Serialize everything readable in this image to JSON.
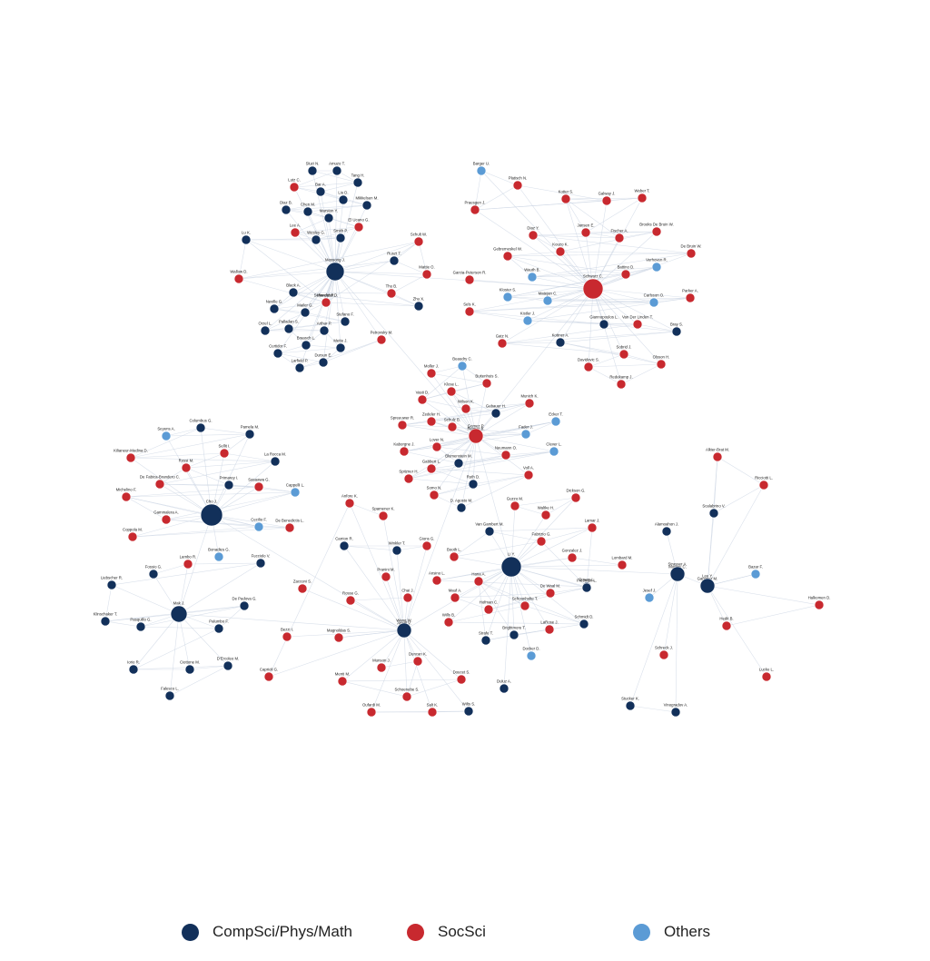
{
  "colors": {
    "compsci": "#12305a",
    "socsci": "#c8292f",
    "others": "#5b9bd5"
  },
  "legend": [
    {
      "key": "compsci",
      "label": "CompSci/Phys/Math"
    },
    {
      "key": "socsci",
      "label": "SocSci"
    },
    {
      "key": "others",
      "label": "Others"
    }
  ],
  "hubs": [
    {
      "name": "Mossong J.",
      "c": "compsci"
    },
    {
      "name": "Schwarz C.",
      "c": "socsci"
    },
    {
      "name": "Gomez P.",
      "c": "socsci"
    },
    {
      "name": "Cho J.",
      "c": "compsci"
    },
    {
      "name": "Li Y.",
      "c": "compsci"
    },
    {
      "name": "Mak J.",
      "c": "compsci"
    },
    {
      "name": "Wang W.",
      "c": "compsci"
    },
    {
      "name": "Strasser A.",
      "c": "compsci"
    },
    {
      "name": "Lee Y.",
      "c": "compsci"
    }
  ],
  "nodes": [
    {
      "name": "Sluzi N.",
      "c": "compsci"
    },
    {
      "name": "Amuzo T.",
      "c": "compsci"
    },
    {
      "name": "Tang H.",
      "c": "compsci"
    },
    {
      "name": "Lutz C.",
      "c": "socsci"
    },
    {
      "name": "Bar A.",
      "c": "compsci"
    },
    {
      "name": "Liu D.",
      "c": "compsci"
    },
    {
      "name": "Mikkelsen M.",
      "c": "compsci"
    },
    {
      "name": "Diaz B.",
      "c": "compsci"
    },
    {
      "name": "Chen M.",
      "c": "compsci"
    },
    {
      "name": "Marston Y.",
      "c": "compsci"
    },
    {
      "name": "El Ucano G.",
      "c": "socsci"
    },
    {
      "name": "Lee A.",
      "c": "socsci"
    },
    {
      "name": "Wesley G.",
      "c": "compsci"
    },
    {
      "name": "Smith P.",
      "c": "compsci"
    },
    {
      "name": "Lu K.",
      "c": "compsci"
    },
    {
      "name": "Mandel R.",
      "c": "socsci"
    },
    {
      "name": "Wallow D.",
      "c": "socsci"
    },
    {
      "name": "Schult W.",
      "c": "socsci"
    },
    {
      "name": "Ruszt T.",
      "c": "compsci"
    },
    {
      "name": "Mattie O.",
      "c": "socsci"
    },
    {
      "name": "Garcia-Peterson R.",
      "c": "socsci"
    },
    {
      "name": "Thu B.",
      "c": "socsci"
    },
    {
      "name": "Zhu X.",
      "c": "compsci"
    },
    {
      "name": "Black A.",
      "c": "compsci"
    },
    {
      "name": "Schweitzer D.",
      "c": "socsci"
    },
    {
      "name": "Neville G.",
      "c": "compsci"
    },
    {
      "name": "Mailer G.",
      "c": "compsci"
    },
    {
      "name": "Stefano F.",
      "c": "compsci"
    },
    {
      "name": "Orzel L.",
      "c": "compsci"
    },
    {
      "name": "Palladan S.",
      "c": "compsci"
    },
    {
      "name": "Arthur P.",
      "c": "compsci"
    },
    {
      "name": "Braasch L.",
      "c": "compsci"
    },
    {
      "name": "Mette J.",
      "c": "compsci"
    },
    {
      "name": "Curtidor F.",
      "c": "compsci"
    },
    {
      "name": "Dursun E.",
      "c": "compsci"
    },
    {
      "name": "Larfield P.",
      "c": "compsci"
    },
    {
      "name": "Petrovsky M.",
      "c": "socsci"
    },
    {
      "name": "Barger U.",
      "c": "others"
    },
    {
      "name": "Platisch N.",
      "c": "socsci"
    },
    {
      "name": "Praesgen J.",
      "c": "socsci"
    },
    {
      "name": "Galway J.",
      "c": "socsci"
    },
    {
      "name": "Weber T.",
      "c": "socsci"
    },
    {
      "name": "Kotter S.",
      "c": "socsci"
    },
    {
      "name": "Jansen E.",
      "c": "socsci"
    },
    {
      "name": "Fischer A.",
      "c": "socsci"
    },
    {
      "name": "Brooks De Bruin W.",
      "c": "socsci"
    },
    {
      "name": "Diaz Y.",
      "c": "socsci"
    },
    {
      "name": "Kouzo K.",
      "c": "socsci"
    },
    {
      "name": "De Bruin W.",
      "c": "socsci"
    },
    {
      "name": "Gebremeskel W.",
      "c": "socsci"
    },
    {
      "name": "Wauth B.",
      "c": "others"
    },
    {
      "name": "Battino D.",
      "c": "socsci"
    },
    {
      "name": "Verhoven R.",
      "c": "others"
    },
    {
      "name": "Kloster S.",
      "c": "others"
    },
    {
      "name": "Matejan C.",
      "c": "others"
    },
    {
      "name": "Carlsson O.",
      "c": "others"
    },
    {
      "name": "Parker A.",
      "c": "socsci"
    },
    {
      "name": "Sels K.",
      "c": "socsci"
    },
    {
      "name": "Kistler J.",
      "c": "others"
    },
    {
      "name": "Giannopoulos L.",
      "c": "compsci"
    },
    {
      "name": "Van Der Linden T.",
      "c": "socsci"
    },
    {
      "name": "Bray S.",
      "c": "compsci"
    },
    {
      "name": "Gatz N.",
      "c": "socsci"
    },
    {
      "name": "Kottner A.",
      "c": "compsci"
    },
    {
      "name": "Sobrid J.",
      "c": "socsci"
    },
    {
      "name": "Olsson H.",
      "c": "socsci"
    },
    {
      "name": "Davidovic S.",
      "c": "socsci"
    },
    {
      "name": "Redekamp J.",
      "c": "socsci"
    },
    {
      "name": "Moller J.",
      "c": "socsci"
    },
    {
      "name": "Beaudry C.",
      "c": "others"
    },
    {
      "name": "Buitenhuis S.",
      "c": "socsci"
    },
    {
      "name": "Vasti D.",
      "c": "socsci"
    },
    {
      "name": "Klose L.",
      "c": "socsci"
    },
    {
      "name": "Wilson K.",
      "c": "socsci"
    },
    {
      "name": "Gebauer H.",
      "c": "compsci"
    },
    {
      "name": "Munich K.",
      "c": "socsci"
    },
    {
      "name": "Spreeuwer R.",
      "c": "socsci"
    },
    {
      "name": "Zedeler H.",
      "c": "socsci"
    },
    {
      "name": "Schulz B.",
      "c": "socsci"
    },
    {
      "name": "Reimer B.",
      "c": "socsci"
    },
    {
      "name": "Fader J.",
      "c": "others"
    },
    {
      "name": "Ecker T.",
      "c": "others"
    },
    {
      "name": "Kaborgne J.",
      "c": "socsci"
    },
    {
      "name": "Lover N.",
      "c": "socsci"
    },
    {
      "name": "Blumenstein M.",
      "c": "compsci"
    },
    {
      "name": "Neumann O.",
      "c": "socsci"
    },
    {
      "name": "Clever L.",
      "c": "others"
    },
    {
      "name": "Spitzner H.",
      "c": "socsci"
    },
    {
      "name": "Gabbert L.",
      "c": "socsci"
    },
    {
      "name": "Ruth D.",
      "c": "compsci"
    },
    {
      "name": "Voll A.",
      "c": "socsci"
    },
    {
      "name": "Somo N.",
      "c": "socsci"
    },
    {
      "name": "D. Agosto M.",
      "c": "compsci"
    },
    {
      "name": "Alkier-Brat M.",
      "c": "socsci"
    },
    {
      "name": "Ricciotti L.",
      "c": "socsci"
    },
    {
      "name": "Scalabrino V.",
      "c": "compsci"
    },
    {
      "name": "Seyens A.",
      "c": "others"
    },
    {
      "name": "Columbus G.",
      "c": "compsci"
    },
    {
      "name": "Pamela M.",
      "c": "compsci"
    },
    {
      "name": "Kilianeur-Medina D.",
      "c": "socsci"
    },
    {
      "name": "Sellit I.",
      "c": "socsci"
    },
    {
      "name": "La Rocca M.",
      "c": "compsci"
    },
    {
      "name": "Rossi M.",
      "c": "socsci"
    },
    {
      "name": "De Fabica-Brandero C.",
      "c": "socsci"
    },
    {
      "name": "Primarey I.",
      "c": "compsci"
    },
    {
      "name": "Sasaawa G.",
      "c": "socsci"
    },
    {
      "name": "Cappelli L.",
      "c": "others"
    },
    {
      "name": "Michelino F.",
      "c": "socsci"
    },
    {
      "name": "Gammalera A.",
      "c": "socsci"
    },
    {
      "name": "Cecilio F.",
      "c": "others"
    },
    {
      "name": "De Benedictis L.",
      "c": "socsci"
    },
    {
      "name": "Coppola M.",
      "c": "socsci"
    },
    {
      "name": "Fossio G.",
      "c": "compsci"
    },
    {
      "name": "Lambo R.",
      "c": "socsci"
    },
    {
      "name": "Bonadies G.",
      "c": "others"
    },
    {
      "name": "Fucciolo V.",
      "c": "compsci"
    },
    {
      "name": "Liebscher R.",
      "c": "compsci"
    },
    {
      "name": "Zacconi S.",
      "c": "socsci"
    },
    {
      "name": "Klinschaker T.",
      "c": "compsci"
    },
    {
      "name": "Pasquillo G.",
      "c": "compsci"
    },
    {
      "name": "De Padova G.",
      "c": "compsci"
    },
    {
      "name": "Palumbo F.",
      "c": "compsci"
    },
    {
      "name": "Bezzi I.",
      "c": "socsci"
    },
    {
      "name": "Iorio R.",
      "c": "compsci"
    },
    {
      "name": "Ciottone M.",
      "c": "compsci"
    },
    {
      "name": "D'Ercoleo M.",
      "c": "compsci"
    },
    {
      "name": "Caprioli G.",
      "c": "socsci"
    },
    {
      "name": "Falesco L.",
      "c": "compsci"
    },
    {
      "name": "Anfore K.",
      "c": "socsci"
    },
    {
      "name": "Spamener K.",
      "c": "socsci"
    },
    {
      "name": "Guzzo M.",
      "c": "socsci"
    },
    {
      "name": "Waltke H.",
      "c": "socsci"
    },
    {
      "name": "Dickson G.",
      "c": "socsci"
    },
    {
      "name": "Carrion R.",
      "c": "compsci"
    },
    {
      "name": "Winkler T.",
      "c": "compsci"
    },
    {
      "name": "Gions G.",
      "c": "socsci"
    },
    {
      "name": "Booth L.",
      "c": "socsci"
    },
    {
      "name": "Van Gambert M.",
      "c": "compsci"
    },
    {
      "name": "Fabrizio G.",
      "c": "socsci"
    },
    {
      "name": "Lamar J.",
      "c": "socsci"
    },
    {
      "name": "Ornery L.",
      "c": "compsci"
    },
    {
      "name": "Pranini M.",
      "c": "socsci"
    },
    {
      "name": "Ansino L.",
      "c": "socsci"
    },
    {
      "name": "Alamoahon J.",
      "c": "compsci"
    },
    {
      "name": "Gonzalez J.",
      "c": "socsci"
    },
    {
      "name": "Lombard M.",
      "c": "socsci"
    },
    {
      "name": "Mortiny C.",
      "c": "socsci"
    },
    {
      "name": "Gammer M.",
      "c": "compsci"
    },
    {
      "name": "Bazar F.",
      "c": "others"
    },
    {
      "name": "Rosse G.",
      "c": "socsci"
    },
    {
      "name": "Chai J.",
      "c": "socsci"
    },
    {
      "name": "Mauf A.",
      "c": "socsci"
    },
    {
      "name": "Hofman C.",
      "c": "socsci"
    },
    {
      "name": "De Waal M.",
      "c": "socsci"
    },
    {
      "name": "Freeman L.",
      "c": "compsci"
    },
    {
      "name": "Jesef J.",
      "c": "others"
    },
    {
      "name": "Hedit B.",
      "c": "socsci"
    },
    {
      "name": "Halkomen D.",
      "c": "socsci"
    },
    {
      "name": "Magnoldas S.",
      "c": "socsci"
    },
    {
      "name": "Ansel V.",
      "c": "compsci"
    },
    {
      "name": "Wills B.",
      "c": "socsci"
    },
    {
      "name": "Schoonholte T.",
      "c": "socsci"
    },
    {
      "name": "Schmidt D.",
      "c": "compsci"
    },
    {
      "name": "Hana A.",
      "c": "socsci"
    },
    {
      "name": "Brightmore T.",
      "c": "compsci"
    },
    {
      "name": "Strafe T.",
      "c": "compsci"
    },
    {
      "name": "LaRose J.",
      "c": "socsci"
    },
    {
      "name": "Munson J.",
      "c": "socsci"
    },
    {
      "name": "Duncan K.",
      "c": "socsci"
    },
    {
      "name": "Docker D.",
      "c": "others"
    },
    {
      "name": "Schoenebe S.",
      "c": "socsci"
    },
    {
      "name": "Menti M.",
      "c": "socsci"
    },
    {
      "name": "Doucet S.",
      "c": "socsci"
    },
    {
      "name": "Duluz A.",
      "c": "compsci"
    },
    {
      "name": "Lucke L.",
      "c": "socsci"
    },
    {
      "name": "Schreck J.",
      "c": "socsci"
    },
    {
      "name": "Oufardi M.",
      "c": "socsci"
    },
    {
      "name": "Salt K.",
      "c": "socsci"
    },
    {
      "name": "Wilts S.",
      "c": "compsci"
    },
    {
      "name": "Stucker K.",
      "c": "compsci"
    },
    {
      "name": "Vinogradov A.",
      "c": "compsci"
    }
  ]
}
